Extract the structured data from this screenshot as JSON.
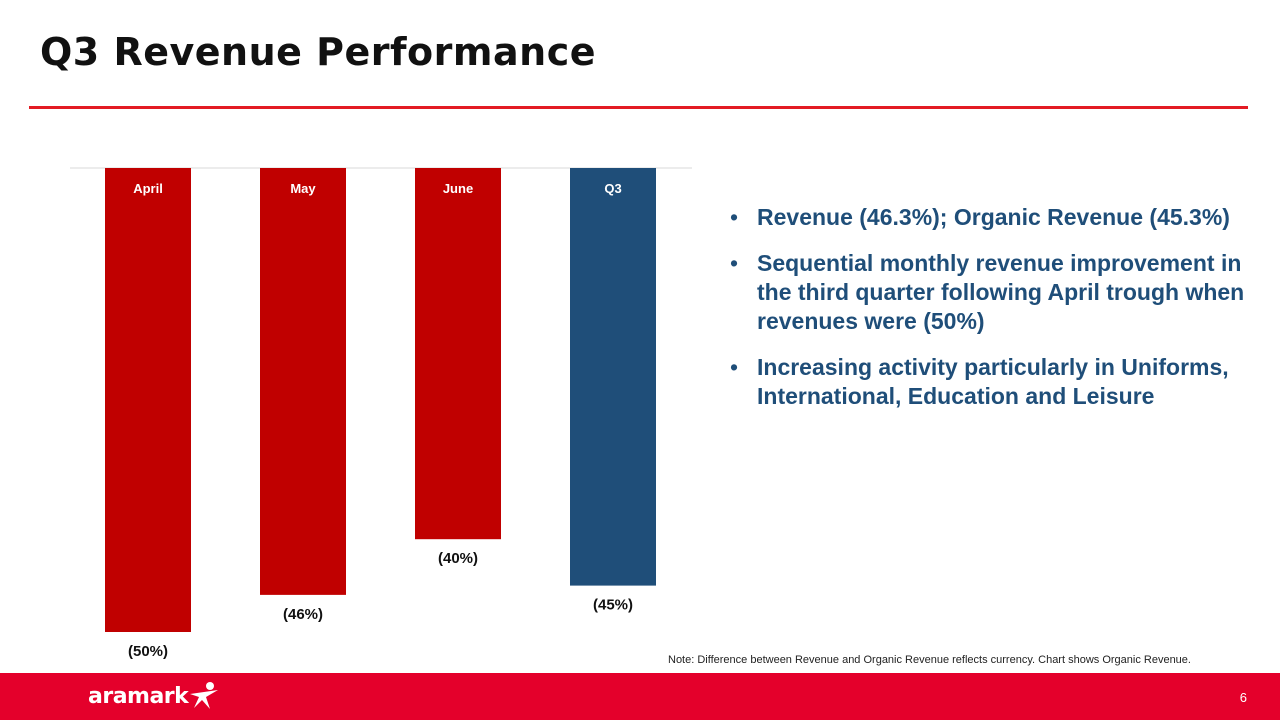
{
  "page": {
    "title": "Q3 Revenue Performance",
    "accent_color": "#e31b23"
  },
  "chart_data": {
    "type": "bar",
    "categories": [
      "April",
      "May",
      "June",
      "Q3"
    ],
    "values": [
      -50,
      -46,
      -40,
      -45
    ],
    "value_labels": [
      "(50%)",
      "(46%)",
      "(40%)",
      "(45%)"
    ],
    "bar_colors": [
      "#c00000",
      "#c00000",
      "#c00000",
      "#1f4e79"
    ],
    "ylim": [
      -50,
      0
    ],
    "title": "",
    "xlabel": "",
    "ylabel": "",
    "grid": false,
    "category_label_position": "inside-top"
  },
  "bullets": [
    "Revenue (46.3%); Organic Revenue (45.3%)",
    "Sequential monthly revenue improvement in the third quarter following April trough when revenues were (50%)",
    "Increasing activity particularly in Uniforms, International, Education and Leisure"
  ],
  "bullet_glyph": "•",
  "note": "Note: Difference between Revenue and Organic Revenue reflects currency. Chart shows Organic Revenue.",
  "footer": {
    "logo_text": "aramark",
    "logo_icon": "aramark-star-figure-icon",
    "page_number": "6",
    "background_color": "#e4002b"
  }
}
